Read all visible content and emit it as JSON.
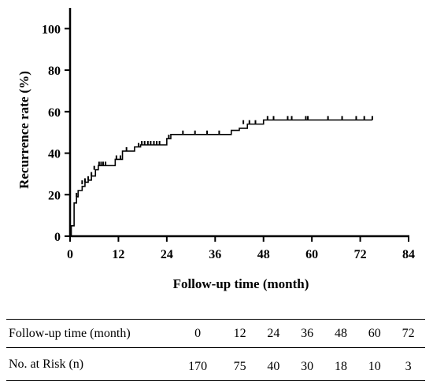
{
  "chart_data": {
    "type": "line",
    "title": "",
    "xlabel": "Follow-up time (month)",
    "ylabel": "Recurrence rate (%)",
    "xlim": [
      0,
      84
    ],
    "ylim": [
      0,
      110
    ],
    "xticks": [
      0,
      12,
      24,
      36,
      48,
      60,
      72,
      84
    ],
    "yticks": [
      0,
      20,
      40,
      60,
      80,
      100
    ],
    "grid": false,
    "series": [
      {
        "step": [
          [
            0,
            0
          ],
          [
            0.3,
            5
          ],
          [
            1,
            16
          ],
          [
            1.6,
            19
          ],
          [
            2,
            22
          ],
          [
            3,
            24
          ],
          [
            3.7,
            26
          ],
          [
            4.5,
            27
          ],
          [
            5.3,
            29
          ],
          [
            6.3,
            32
          ],
          [
            7,
            34
          ],
          [
            10,
            34
          ],
          [
            11.2,
            37
          ],
          [
            13,
            41
          ],
          [
            16,
            43
          ],
          [
            17.5,
            44
          ],
          [
            23,
            44
          ],
          [
            24,
            47
          ],
          [
            25,
            49
          ],
          [
            39,
            49
          ],
          [
            40,
            51
          ],
          [
            42,
            52
          ],
          [
            44,
            54
          ],
          [
            48,
            56
          ],
          [
            75,
            56
          ]
        ],
        "censored": [
          [
            1.6,
            19
          ],
          [
            3,
            25
          ],
          [
            3.7,
            26
          ],
          [
            4.5,
            27
          ],
          [
            5.3,
            29
          ],
          [
            6,
            32
          ],
          [
            7.2,
            34
          ],
          [
            7.7,
            34
          ],
          [
            8.2,
            34
          ],
          [
            8.8,
            34
          ],
          [
            11.5,
            37
          ],
          [
            12.5,
            37
          ],
          [
            14,
            41
          ],
          [
            17,
            43
          ],
          [
            17.8,
            44
          ],
          [
            18.5,
            44
          ],
          [
            19.3,
            44
          ],
          [
            20,
            44
          ],
          [
            20.8,
            44
          ],
          [
            21.5,
            44
          ],
          [
            22.2,
            44
          ],
          [
            24.5,
            47
          ],
          [
            28,
            49
          ],
          [
            31,
            49
          ],
          [
            34,
            49
          ],
          [
            37,
            49
          ],
          [
            43,
            54
          ],
          [
            44.5,
            54
          ],
          [
            46,
            54
          ],
          [
            49,
            56
          ],
          [
            50.5,
            56
          ],
          [
            54,
            56
          ],
          [
            55,
            56
          ],
          [
            58.5,
            56
          ],
          [
            59,
            56
          ],
          [
            64,
            56
          ],
          [
            67.5,
            56
          ],
          [
            71,
            56
          ],
          [
            73,
            56
          ],
          [
            75,
            56
          ]
        ]
      }
    ]
  },
  "risk_table": {
    "row_time_label": "Follow-up time (month)",
    "times": [
      "0",
      "12",
      "24",
      "36",
      "48",
      "60",
      "72"
    ],
    "row_risk_label": "No. at Risk (n)",
    "at_risk": [
      "170",
      "75",
      "40",
      "30",
      "18",
      "10",
      "3"
    ]
  }
}
